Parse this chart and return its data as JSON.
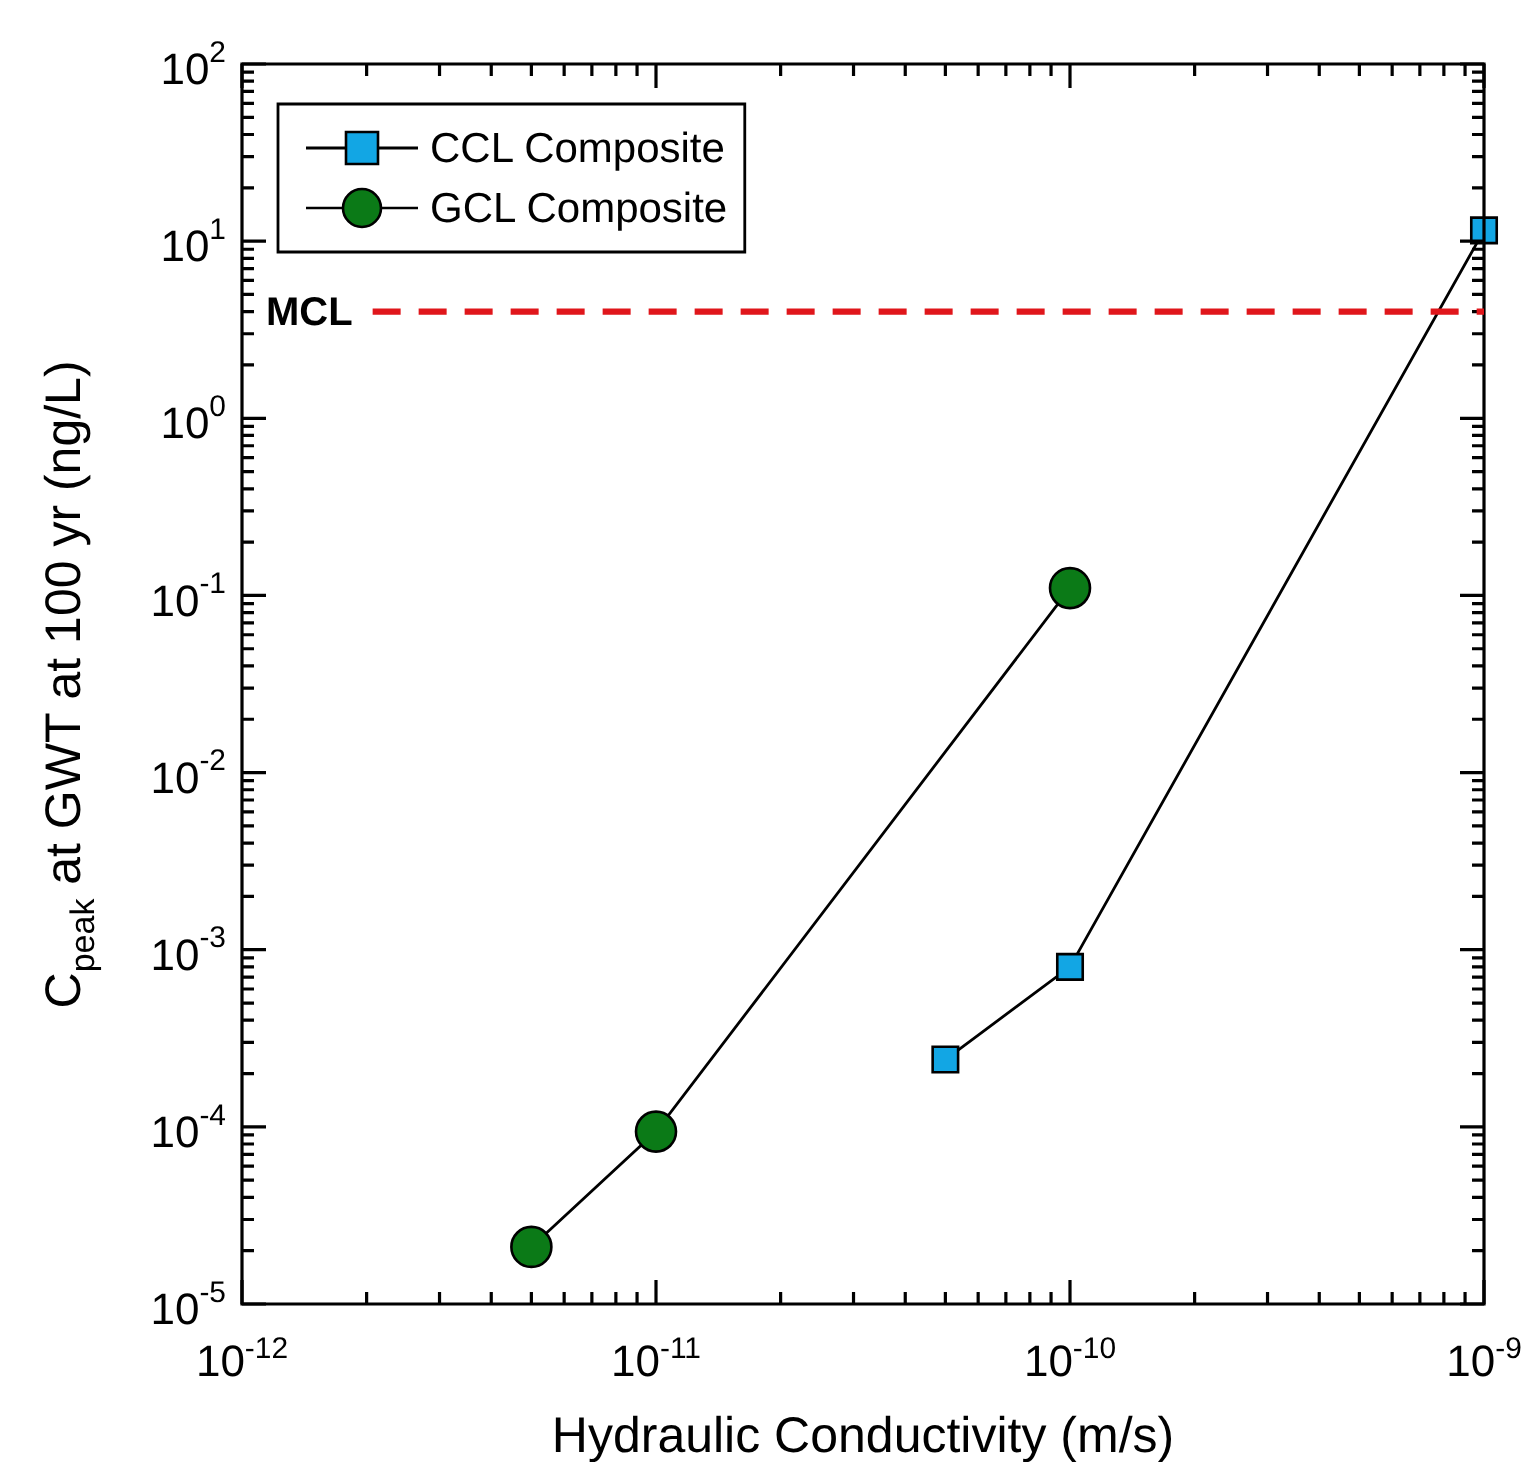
{
  "chart_data": {
    "type": "line",
    "xlabel": "Hydraulic Conductivity (m/s)",
    "ylabel": "C$_{peak}$ at GWT at 100 yr (ng/L)",
    "log": "xy",
    "legend": "top left",
    "grid": false,
    "series": [
      {
        "name": "CCL Composite",
        "color": "#12a6e4",
        "marker": "square",
        "x": [
          5e-11,
          1e-10,
          1e-09
        ],
        "values": [
          0.00024,
          0.0008,
          11.5
        ]
      },
      {
        "name": "GCL Composite",
        "color": "#0b7a17",
        "marker": "circle",
        "x": [
          5e-12,
          1e-11,
          1e-10
        ],
        "values": [
          2.1e-05,
          9.4e-05,
          0.11
        ]
      }
    ],
    "xlim": [
      1e-12,
      1e-09
    ],
    "xticks": [
      {
        "value": 1e-12,
        "label": "10$^{-12}$"
      },
      {
        "value": 2e-12,
        "label": null
      },
      {
        "value": 3e-12,
        "label": null
      },
      {
        "value": 4e-12,
        "label": null
      },
      {
        "value": 5e-12,
        "label": null
      },
      {
        "value": 6e-12,
        "label": null
      },
      {
        "value": 7e-12,
        "label": null
      },
      {
        "value": 8e-12,
        "label": null
      },
      {
        "value": 9e-12,
        "label": null
      },
      {
        "value": 1e-11,
        "label": "10$^{-11}$"
      },
      {
        "value": 2e-11,
        "label": null
      },
      {
        "value": 3e-11,
        "label": null
      },
      {
        "value": 4e-11,
        "label": null
      },
      {
        "value": 5e-11,
        "label": null
      },
      {
        "value": 6e-11,
        "label": null
      },
      {
        "value": 7e-11,
        "label": null
      },
      {
        "value": 8e-11,
        "label": null
      },
      {
        "value": 9e-11,
        "label": null
      },
      {
        "value": 1e-10,
        "label": "10$^{-10}$"
      },
      {
        "value": 2e-10,
        "label": null
      },
      {
        "value": 3e-10,
        "label": null
      },
      {
        "value": 4e-10,
        "label": null
      },
      {
        "value": 5e-10,
        "label": null
      },
      {
        "value": 6e-10,
        "label": null
      },
      {
        "value": 7e-10,
        "label": null
      },
      {
        "value": 8e-10,
        "label": null
      },
      {
        "value": 9e-10,
        "label": null
      },
      {
        "value": 1e-09,
        "label": "10$^{-9}$"
      }
    ],
    "ylim": [
      1e-05,
      100
    ],
    "yticks": [
      {
        "value": 1e-05,
        "label": "10$^{-5}$"
      },
      {
        "value": 2e-05,
        "label": null
      },
      {
        "value": 3e-05,
        "label": null
      },
      {
        "value": 4e-05,
        "label": null
      },
      {
        "value": 5e-05,
        "label": null
      },
      {
        "value": 6e-05,
        "label": null
      },
      {
        "value": 7e-05,
        "label": null
      },
      {
        "value": 8e-05,
        "label": null
      },
      {
        "value": 9e-05,
        "label": null
      },
      {
        "value": 0.0001,
        "label": "10$^{-4}$"
      },
      {
        "value": 0.0002,
        "label": null
      },
      {
        "value": 0.0003,
        "label": null
      },
      {
        "value": 0.0004,
        "label": null
      },
      {
        "value": 0.0005,
        "label": null
      },
      {
        "value": 0.0006,
        "label": null
      },
      {
        "value": 0.0007,
        "label": null
      },
      {
        "value": 0.0008,
        "label": null
      },
      {
        "value": 0.0009,
        "label": null
      },
      {
        "value": 0.001,
        "label": "10$^{-3}$"
      },
      {
        "value": 0.002,
        "label": null
      },
      {
        "value": 0.003,
        "label": null
      },
      {
        "value": 0.004,
        "label": null
      },
      {
        "value": 0.005,
        "label": null
      },
      {
        "value": 0.006,
        "label": null
      },
      {
        "value": 0.007,
        "label": null
      },
      {
        "value": 0.008,
        "label": null
      },
      {
        "value": 0.009,
        "label": null
      },
      {
        "value": 0.01,
        "label": "10$^{-2}$"
      },
      {
        "value": 0.02,
        "label": null
      },
      {
        "value": 0.03,
        "label": null
      },
      {
        "value": 0.04,
        "label": null
      },
      {
        "value": 0.05,
        "label": null
      },
      {
        "value": 0.06,
        "label": null
      },
      {
        "value": 0.07,
        "label": null
      },
      {
        "value": 0.08,
        "label": null
      },
      {
        "value": 0.09,
        "label": null
      },
      {
        "value": 0.1,
        "label": "10$^{-1}$"
      },
      {
        "value": 0.2,
        "label": null
      },
      {
        "value": 0.3,
        "label": null
      },
      {
        "value": 0.4,
        "label": null
      },
      {
        "value": 0.5,
        "label": null
      },
      {
        "value": 0.6,
        "label": null
      },
      {
        "value": 0.7,
        "label": null
      },
      {
        "value": 0.8,
        "label": null
      },
      {
        "value": 0.9,
        "label": null
      },
      {
        "value": 1,
        "label": "10$^{0}$"
      },
      {
        "value": 2,
        "label": null
      },
      {
        "value": 3,
        "label": null
      },
      {
        "value": 4,
        "label": null
      },
      {
        "value": 5,
        "label": null
      },
      {
        "value": 6,
        "label": null
      },
      {
        "value": 7,
        "label": null
      },
      {
        "value": 8,
        "label": null
      },
      {
        "value": 9,
        "label": null
      },
      {
        "value": 10,
        "label": "10$^{1}$"
      },
      {
        "value": 20,
        "label": null
      },
      {
        "value": 30,
        "label": null
      },
      {
        "value": 40,
        "label": null
      },
      {
        "value": 50,
        "label": null
      },
      {
        "value": 60,
        "label": null
      },
      {
        "value": 70,
        "label": null
      },
      {
        "value": 80,
        "label": null
      },
      {
        "value": 90,
        "label": null
      },
      {
        "value": 100,
        "label": "10$^{2}$"
      }
    ],
    "ref_lines": [
      {
        "axis": "y",
        "value": 4,
        "label": "MCL",
        "color": "#e0161b",
        "line_style": "dashed"
      }
    ]
  }
}
